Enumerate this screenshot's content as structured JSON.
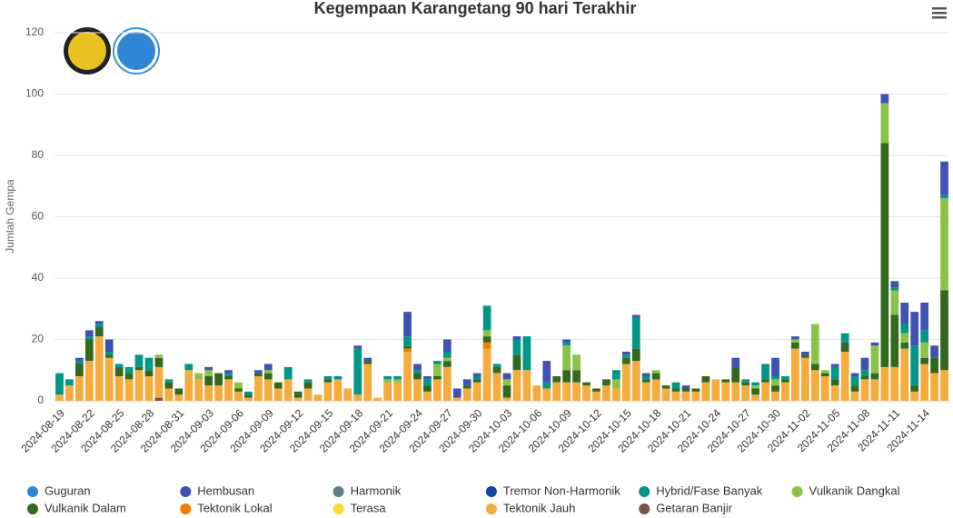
{
  "chart_data": {
    "type": "stacked_bar",
    "title": "Kegempaan Karangetang 90 hari Terakhir",
    "y_label": "Jumlah Gempa",
    "ylim": [
      0,
      120
    ],
    "yticks": [
      0,
      20,
      40,
      60,
      80,
      100,
      120
    ],
    "grid": true,
    "categories": [
      "2024-08-19",
      null,
      null,
      "2024-08-22",
      null,
      null,
      "2024-08-25",
      null,
      null,
      "2024-08-28",
      null,
      null,
      "2024-08-31",
      null,
      null,
      "2024-09-03",
      null,
      null,
      "2024-09-06",
      null,
      null,
      "2024-09-09",
      null,
      null,
      "2024-09-12",
      null,
      null,
      "2024-09-15",
      null,
      null,
      "2024-09-18",
      null,
      null,
      "2024-09-21",
      null,
      null,
      "2024-09-24",
      null,
      null,
      "2024-09-27",
      null,
      null,
      "2024-09-30",
      null,
      null,
      "2024-10-03",
      null,
      null,
      "2024-10-06",
      null,
      null,
      "2024-10-09",
      null,
      null,
      "2024-10-12",
      null,
      null,
      "2024-10-15",
      null,
      null,
      "2024-10-18",
      null,
      null,
      "2024-10-21",
      null,
      null,
      "2024-10-24",
      null,
      null,
      "2024-10-27",
      null,
      null,
      "2024-10-30",
      null,
      null,
      "2024-11-02",
      null,
      null,
      "2024-11-05",
      null,
      null,
      "2024-11-08",
      null,
      null,
      "2024-11-11",
      null,
      null,
      "2024-11-14",
      null,
      null
    ],
    "series": [
      {
        "name": "Guguran",
        "color": "#2b85d0",
        "values": [
          0,
          0,
          0,
          0,
          0,
          0,
          0,
          0,
          0,
          0,
          0,
          0,
          0,
          0,
          0,
          0,
          0,
          0,
          0,
          0,
          0,
          0,
          0,
          0,
          0,
          0,
          0,
          0,
          0,
          0,
          0,
          0,
          0,
          0,
          0,
          0,
          0,
          0,
          0,
          0,
          0,
          0,
          0,
          0,
          0,
          0,
          0,
          0,
          0,
          0,
          0,
          0,
          0,
          0,
          0,
          0,
          0,
          0,
          0,
          0,
          0,
          0,
          0,
          0,
          0,
          0,
          0,
          0,
          0,
          0,
          0,
          0,
          0,
          0,
          0,
          0,
          0,
          0,
          0,
          0,
          0,
          0,
          0,
          0,
          0,
          0,
          0,
          0,
          0,
          0
        ]
      },
      {
        "name": "Hembusan",
        "color": "#3f51b5",
        "values": [
          0,
          0,
          1,
          2,
          1,
          4,
          0,
          0,
          0,
          0,
          0,
          0,
          0,
          0,
          0,
          1,
          0,
          1,
          0,
          0,
          1,
          2,
          0,
          0,
          0,
          0,
          0,
          0,
          0,
          0,
          1,
          1,
          0,
          0,
          0,
          8,
          2,
          1,
          0,
          4,
          3,
          2,
          1,
          0,
          0,
          2,
          1,
          0,
          0,
          7,
          0,
          1,
          0,
          0,
          0,
          0,
          0,
          1,
          1,
          1,
          0,
          0,
          0,
          1,
          0,
          0,
          0,
          0,
          3,
          0,
          0,
          0,
          6,
          0,
          1,
          1,
          0,
          0,
          1,
          0,
          1,
          4,
          1,
          3,
          2,
          7,
          11,
          9,
          4,
          11
        ]
      },
      {
        "name": "Harmonik",
        "color": "#607d8b",
        "values": [
          0,
          0,
          0,
          0,
          0,
          0,
          0,
          0,
          0,
          0,
          0,
          0,
          0,
          0,
          0,
          0,
          0,
          0,
          0,
          0,
          0,
          0,
          0,
          0,
          0,
          0,
          0,
          0,
          0,
          0,
          0,
          0,
          0,
          0,
          0,
          0,
          0,
          0,
          0,
          0,
          0,
          0,
          0,
          0,
          0,
          0,
          0,
          0,
          0,
          0,
          0,
          0,
          0,
          0,
          0,
          0,
          0,
          0,
          0,
          0,
          0,
          0,
          0,
          0,
          0,
          0,
          0,
          0,
          0,
          0,
          0,
          0,
          0,
          0,
          0,
          0,
          0,
          0,
          0,
          0,
          0,
          0,
          0,
          0,
          0,
          0,
          0,
          0,
          0,
          0
        ]
      },
      {
        "name": "Tremor Non-Harmonik",
        "color": "#0d47a1",
        "values": [
          0,
          0,
          0,
          0,
          0,
          0,
          0,
          0,
          0,
          0,
          0,
          0,
          0,
          0,
          0,
          0,
          0,
          0,
          0,
          0,
          0,
          0,
          0,
          0,
          0,
          0,
          0,
          0,
          0,
          0,
          0,
          0,
          0,
          0,
          0,
          0,
          0,
          0,
          0,
          0,
          0,
          0,
          0,
          0,
          0,
          0,
          0,
          0,
          0,
          0,
          0,
          0,
          0,
          0,
          0,
          0,
          0,
          0,
          0,
          0,
          0,
          0,
          0,
          0,
          0,
          0,
          0,
          0,
          0,
          0,
          0,
          0,
          0,
          0,
          0,
          0,
          0,
          0,
          0,
          0,
          0,
          0,
          0,
          0,
          0,
          0,
          0,
          0,
          0,
          0
        ]
      },
      {
        "name": "Hybrid/Fase Banyak",
        "color": "#009688",
        "values": [
          7,
          2,
          1,
          1,
          1,
          1,
          1,
          2,
          4,
          4,
          0,
          1,
          0,
          2,
          0,
          0,
          0,
          1,
          0,
          1,
          0,
          0,
          0,
          4,
          0,
          1,
          0,
          1,
          1,
          0,
          15,
          0,
          0,
          1,
          1,
          3,
          1,
          2,
          1,
          2,
          0,
          0,
          1,
          8,
          1,
          0,
          5,
          11,
          0,
          2,
          0,
          1,
          0,
          0,
          0,
          0,
          3,
          1,
          10,
          1,
          0,
          0,
          2,
          0,
          0,
          0,
          0,
          0,
          0,
          1,
          1,
          5,
          1,
          1,
          0,
          0,
          0,
          0,
          4,
          3,
          3,
          2,
          0,
          0,
          1,
          3,
          13,
          4,
          0,
          1
        ]
      },
      {
        "name": "Vulkanik Dangkal",
        "color": "#8bc34a",
        "values": [
          0,
          0,
          0,
          0,
          0,
          0,
          0,
          0,
          0,
          0,
          1,
          0,
          0,
          0,
          2,
          2,
          0,
          0,
          2,
          0,
          0,
          1,
          0,
          0,
          0,
          0,
          0,
          0,
          0,
          0,
          0,
          0,
          0,
          1,
          1,
          0,
          0,
          0,
          4,
          1,
          0,
          0,
          0,
          2,
          0,
          2,
          0,
          0,
          0,
          0,
          0,
          8,
          5,
          0,
          0,
          0,
          3,
          0,
          0,
          0,
          1,
          0,
          0,
          0,
          0,
          0,
          0,
          0,
          0,
          0,
          1,
          0,
          2,
          0,
          1,
          0,
          13,
          1,
          0,
          0,
          0,
          0,
          9,
          13,
          8,
          3,
          0,
          5,
          0,
          30
        ]
      },
      {
        "name": "Vulkanik Dalam",
        "color": "#33691e",
        "values": [
          0,
          0,
          4,
          7,
          3,
          1,
          3,
          2,
          1,
          2,
          3,
          2,
          2,
          0,
          0,
          3,
          4,
          1,
          1,
          1,
          1,
          2,
          2,
          0,
          2,
          2,
          0,
          1,
          0,
          0,
          0,
          1,
          0,
          0,
          0,
          1,
          2,
          2,
          1,
          2,
          0,
          1,
          1,
          2,
          2,
          4,
          5,
          0,
          0,
          0,
          2,
          4,
          4,
          1,
          1,
          2,
          0,
          2,
          4,
          1,
          2,
          1,
          1,
          1,
          1,
          2,
          0,
          1,
          5,
          1,
          2,
          1,
          2,
          1,
          2,
          1,
          2,
          1,
          2,
          3,
          2,
          1,
          2,
          73,
          17,
          2,
          2,
          2,
          5,
          26
        ]
      },
      {
        "name": "Tektonik Lokal",
        "color": "#f57c00",
        "values": [
          0,
          0,
          0,
          0,
          0,
          0,
          0,
          0,
          0,
          0,
          0,
          0,
          0,
          0,
          0,
          0,
          0,
          0,
          0,
          0,
          0,
          0,
          0,
          0,
          0,
          0,
          0,
          0,
          0,
          0,
          0,
          0,
          0,
          0,
          0,
          1,
          0,
          0,
          0,
          0,
          0,
          0,
          0,
          2,
          0,
          0,
          0,
          0,
          0,
          0,
          0,
          0,
          0,
          0,
          0,
          0,
          0,
          0,
          0,
          0,
          0,
          0,
          0,
          0,
          0,
          0,
          0,
          0,
          0,
          0,
          0,
          0,
          0,
          0,
          0,
          0,
          0,
          0,
          0,
          0,
          0,
          0,
          0,
          0,
          0,
          0,
          0,
          0,
          0,
          0
        ]
      },
      {
        "name": "Terasa",
        "color": "#fdd835",
        "values": [
          0,
          0,
          0,
          0,
          0,
          0,
          0,
          0,
          0,
          0,
          0,
          0,
          0,
          0,
          0,
          0,
          0,
          0,
          0,
          0,
          0,
          0,
          0,
          0,
          0,
          0,
          0,
          0,
          0,
          0,
          0,
          0,
          0,
          0,
          0,
          0,
          0,
          0,
          0,
          0,
          0,
          0,
          0,
          0,
          0,
          0,
          0,
          0,
          0,
          0,
          0,
          0,
          0,
          0,
          0,
          0,
          0,
          0,
          0,
          0,
          0,
          0,
          0,
          0,
          0,
          0,
          0,
          0,
          0,
          0,
          0,
          0,
          0,
          0,
          0,
          0,
          0,
          0,
          0,
          0,
          0,
          0,
          0,
          0,
          0,
          0,
          0,
          0,
          0,
          0
        ]
      },
      {
        "name": "Tektonik Jauh",
        "color": "#f5ac3c",
        "values": [
          2,
          5,
          8,
          13,
          21,
          14,
          8,
          7,
          10,
          8,
          10,
          4,
          2,
          10,
          7,
          5,
          5,
          7,
          3,
          1,
          8,
          7,
          4,
          7,
          1,
          4,
          2,
          6,
          7,
          4,
          2,
          12,
          1,
          6,
          6,
          16,
          7,
          3,
          7,
          11,
          1,
          4,
          6,
          17,
          9,
          1,
          10,
          10,
          5,
          4,
          6,
          6,
          6,
          5,
          3,
          5,
          4,
          12,
          13,
          6,
          7,
          4,
          3,
          3,
          3,
          6,
          7,
          6,
          6,
          5,
          2,
          6,
          3,
          6,
          17,
          14,
          10,
          8,
          5,
          16,
          3,
          7,
          7,
          11,
          11,
          17,
          3,
          12,
          9,
          10
        ]
      },
      {
        "name": "Getaran Banjir",
        "color": "#795548",
        "values": [
          0,
          0,
          0,
          0,
          0,
          0,
          0,
          0,
          0,
          0,
          1,
          0,
          0,
          0,
          0,
          0,
          0,
          0,
          0,
          0,
          0,
          0,
          0,
          0,
          0,
          0,
          0,
          0,
          0,
          0,
          0,
          0,
          0,
          0,
          0,
          0,
          0,
          0,
          0,
          0,
          0,
          0,
          0,
          0,
          0,
          0,
          0,
          0,
          0,
          0,
          0,
          0,
          0,
          0,
          0,
          0,
          0,
          0,
          0,
          0,
          0,
          0,
          0,
          0,
          0,
          0,
          0,
          0,
          0,
          0,
          0,
          0,
          0,
          0,
          0,
          0,
          0,
          0,
          0,
          0,
          0,
          0,
          0,
          0,
          0,
          0,
          0,
          0,
          0,
          0
        ]
      }
    ]
  }
}
